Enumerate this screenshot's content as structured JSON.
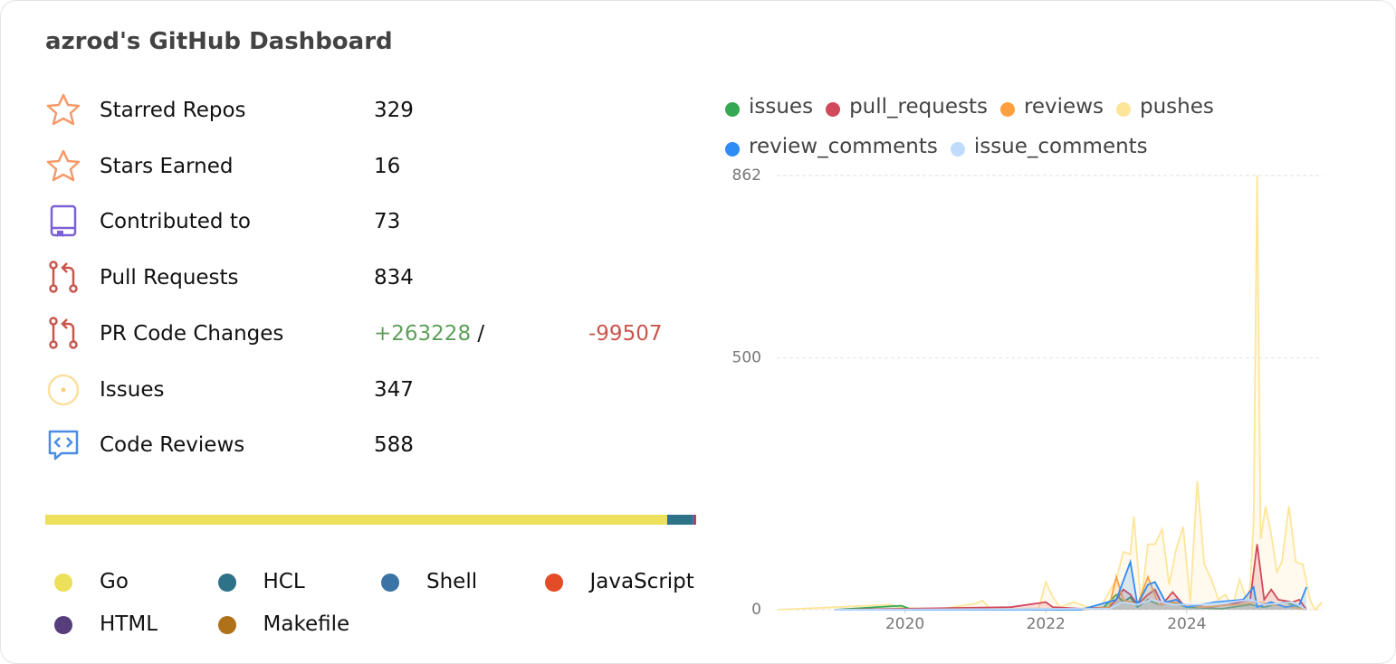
{
  "header": {
    "title": "azrod's GitHub Dashboard"
  },
  "stats": [
    {
      "label": "Starred Repos",
      "value": "329"
    },
    {
      "label": "Stars Earned",
      "value": "16"
    },
    {
      "label": "Contributed to",
      "value": "73"
    },
    {
      "label": "Pull Requests",
      "value": "834"
    },
    {
      "label": "PR Code Changes",
      "added": "+263228",
      "separator": "/",
      "removed": "-99507"
    },
    {
      "label": "Issues",
      "value": "347"
    },
    {
      "label": "Code Reviews",
      "value": "588"
    }
  ],
  "languages": [
    {
      "name": "Go",
      "color": "#ede05a",
      "value": 95.7
    },
    {
      "name": "HCL",
      "color": "#2e7288",
      "value": 3.8
    },
    {
      "name": "Shell",
      "color": "#3a74a6",
      "value": 0.2
    },
    {
      "name": "JavaScript",
      "color": "#e34c26",
      "value": 0.2
    },
    {
      "name": "HTML",
      "color": "#563d7c",
      "value": 0.05
    },
    {
      "name": "Makefile",
      "color": "#b07219",
      "value": 0.05
    }
  ],
  "chart_data": {
    "type": "line",
    "xlim": [
      2018.18,
      2025.93
    ],
    "xticks": [
      2020,
      2022,
      2024
    ],
    "ylim": [
      0,
      862
    ],
    "yticks": [
      0,
      500,
      862
    ],
    "grid": true,
    "series": [
      {
        "name": "pushes",
        "color": "#fde59a",
        "x": [
          2018.2,
          2019.0,
          2019.8,
          2019.95,
          2020.5,
          2021.0,
          2021.1,
          2021.2,
          2021.6,
          2021.9,
          2022.0,
          2022.1,
          2022.2,
          2022.4,
          2022.6,
          2022.8,
          2023.0,
          2023.1,
          2023.2,
          2023.25,
          2023.35,
          2023.45,
          2023.55,
          2023.65,
          2023.75,
          2023.85,
          2023.95,
          2024.05,
          2024.15,
          2024.25,
          2024.35,
          2024.45,
          2024.55,
          2024.65,
          2024.75,
          2024.85,
          2024.9,
          2024.95,
          2025.0,
          2025.05,
          2025.12,
          2025.2,
          2025.28,
          2025.35,
          2025.45,
          2025.55,
          2025.65,
          2025.75,
          2025.82,
          2025.92
        ],
        "values": [
          0,
          5,
          10,
          4,
          1,
          12,
          18,
          3,
          2,
          3,
          55,
          25,
          5,
          15,
          5,
          10,
          60,
          115,
          110,
          185,
          10,
          130,
          130,
          160,
          50,
          120,
          165,
          15,
          255,
          90,
          60,
          20,
          30,
          5,
          60,
          20,
          45,
          175,
          862,
          140,
          205,
          150,
          75,
          95,
          205,
          95,
          90,
          20,
          0,
          15
        ]
      },
      {
        "name": "issues",
        "color": "#34a853",
        "x": [
          2019.0,
          2019.95,
          2020.1,
          2022.8,
          2023.0,
          2023.1,
          2023.2,
          2023.3,
          2023.45,
          2023.6,
          2023.8,
          2024.0,
          2024.5,
          2024.9,
          2025.1,
          2025.4,
          2025.6,
          2025.7
        ],
        "values": [
          0,
          8,
          0,
          2,
          30,
          15,
          25,
          5,
          20,
          10,
          15,
          5,
          2,
          10,
          5,
          15,
          5,
          0
        ]
      },
      {
        "name": "pull_requests",
        "color": "#d1495b",
        "x": [
          2019.0,
          2020.0,
          2021.5,
          2022.0,
          2022.1,
          2022.5,
          2022.9,
          2023.0,
          2023.1,
          2023.2,
          2023.3,
          2023.45,
          2023.55,
          2023.65,
          2023.8,
          2023.95,
          2024.3,
          2024.6,
          2024.9,
          2025.0,
          2025.1,
          2025.2,
          2025.3,
          2025.5,
          2025.6,
          2025.7
        ],
        "values": [
          0,
          2,
          5,
          15,
          5,
          2,
          5,
          20,
          40,
          30,
          10,
          30,
          40,
          10,
          35,
          10,
          5,
          10,
          20,
          130,
          20,
          40,
          20,
          15,
          20,
          0
        ]
      },
      {
        "name": "reviews",
        "color": "#ff9f40",
        "x": [
          2022.5,
          2022.9,
          2023.0,
          2023.1,
          2023.3,
          2023.45,
          2023.6,
          2023.8,
          2024.2,
          2024.7,
          2025.0,
          2025.2,
          2025.5,
          2025.7
        ],
        "values": [
          0,
          5,
          65,
          20,
          10,
          65,
          10,
          15,
          5,
          10,
          15,
          10,
          5,
          0
        ]
      },
      {
        "name": "review_comments",
        "color": "#2f8cf5",
        "x": [
          2019.0,
          2022.5,
          2023.0,
          2023.2,
          2023.3,
          2023.45,
          2023.55,
          2023.7,
          2023.85,
          2024.0,
          2024.4,
          2024.8,
          2024.95,
          2025.0,
          2025.2,
          2025.4,
          2025.6,
          2025.7
        ],
        "values": [
          0,
          0,
          20,
          95,
          10,
          50,
          55,
          15,
          20,
          5,
          15,
          20,
          45,
          5,
          15,
          5,
          10,
          45
        ]
      },
      {
        "name": "issue_comments",
        "color": "#bfdbfe",
        "x": [
          2019.0,
          2022.9,
          2023.1,
          2023.3,
          2023.5,
          2023.8,
          2024.2,
          2024.6,
          2024.9,
          2025.1,
          2025.5,
          2025.7
        ],
        "values": [
          0,
          2,
          15,
          10,
          20,
          10,
          10,
          15,
          20,
          10,
          15,
          0
        ]
      }
    ]
  }
}
